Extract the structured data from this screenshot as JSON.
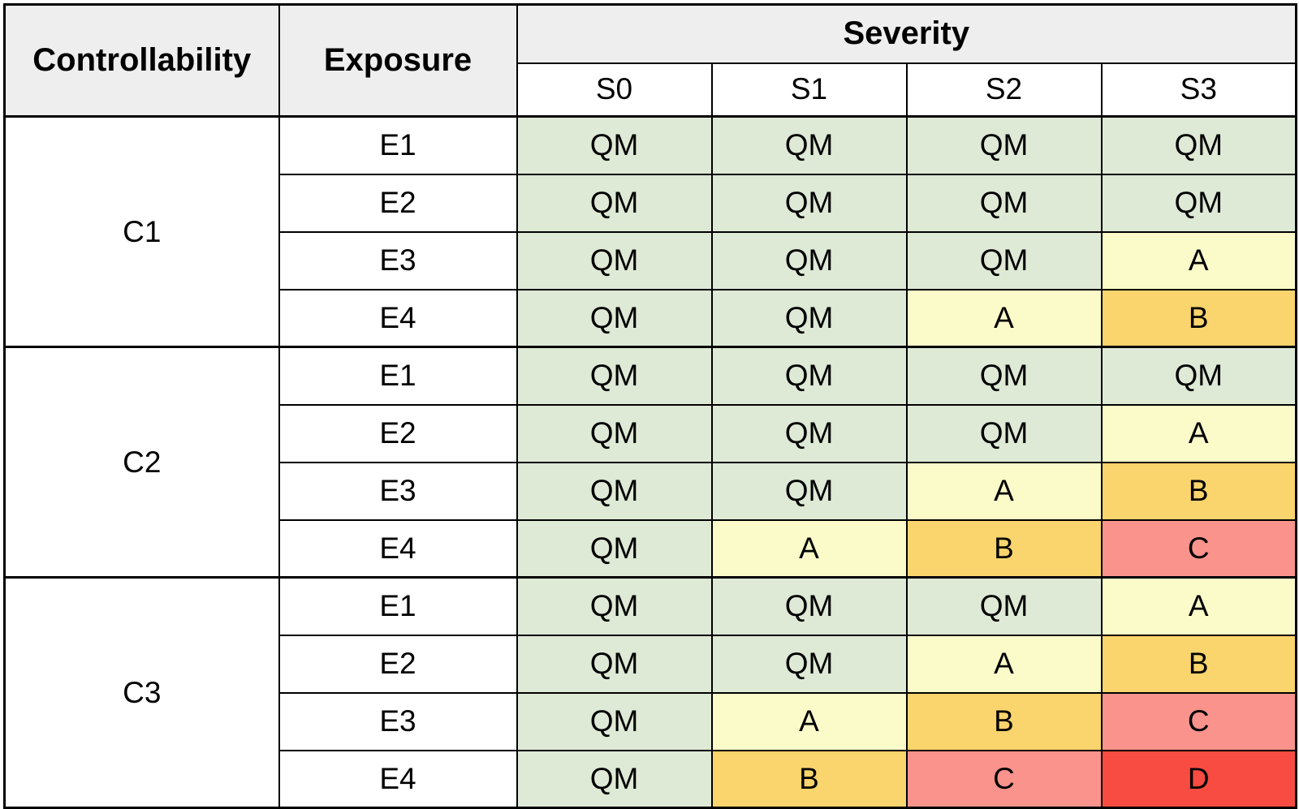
{
  "chart_data": {
    "type": "heatmap",
    "header": {
      "controllability": "Controllability",
      "exposure": "Exposure",
      "severity": "Severity",
      "severity_levels": [
        "S0",
        "S1",
        "S2",
        "S3"
      ]
    },
    "groups": [
      {
        "controllability": "C1",
        "rows": [
          {
            "exposure": "E1",
            "values": [
              "QM",
              "QM",
              "QM",
              "QM"
            ]
          },
          {
            "exposure": "E2",
            "values": [
              "QM",
              "QM",
              "QM",
              "QM"
            ]
          },
          {
            "exposure": "E3",
            "values": [
              "QM",
              "QM",
              "QM",
              "A"
            ]
          },
          {
            "exposure": "E4",
            "values": [
              "QM",
              "QM",
              "A",
              "B"
            ]
          }
        ]
      },
      {
        "controllability": "C2",
        "rows": [
          {
            "exposure": "E1",
            "values": [
              "QM",
              "QM",
              "QM",
              "QM"
            ]
          },
          {
            "exposure": "E2",
            "values": [
              "QM",
              "QM",
              "QM",
              "A"
            ]
          },
          {
            "exposure": "E3",
            "values": [
              "QM",
              "QM",
              "A",
              "B"
            ]
          },
          {
            "exposure": "E4",
            "values": [
              "QM",
              "A",
              "B",
              "C"
            ]
          }
        ]
      },
      {
        "controllability": "C3",
        "rows": [
          {
            "exposure": "E1",
            "values": [
              "QM",
              "QM",
              "QM",
              "A"
            ]
          },
          {
            "exposure": "E2",
            "values": [
              "QM",
              "QM",
              "A",
              "B"
            ]
          },
          {
            "exposure": "E3",
            "values": [
              "QM",
              "A",
              "B",
              "C"
            ]
          },
          {
            "exposure": "E4",
            "values": [
              "QM",
              "B",
              "C",
              "D"
            ]
          }
        ]
      }
    ],
    "level_colors": {
      "QM": "#dee9d6",
      "A": "#fbfbca",
      "B": "#fad46c",
      "C": "#fa938c",
      "D": "#f84c42"
    },
    "header_bg": "#eeeeee",
    "layout_hints": {
      "column_headers_left": [
        "Controllability",
        "Exposure"
      ],
      "column_group_label": "Severity",
      "grid": true
    }
  }
}
